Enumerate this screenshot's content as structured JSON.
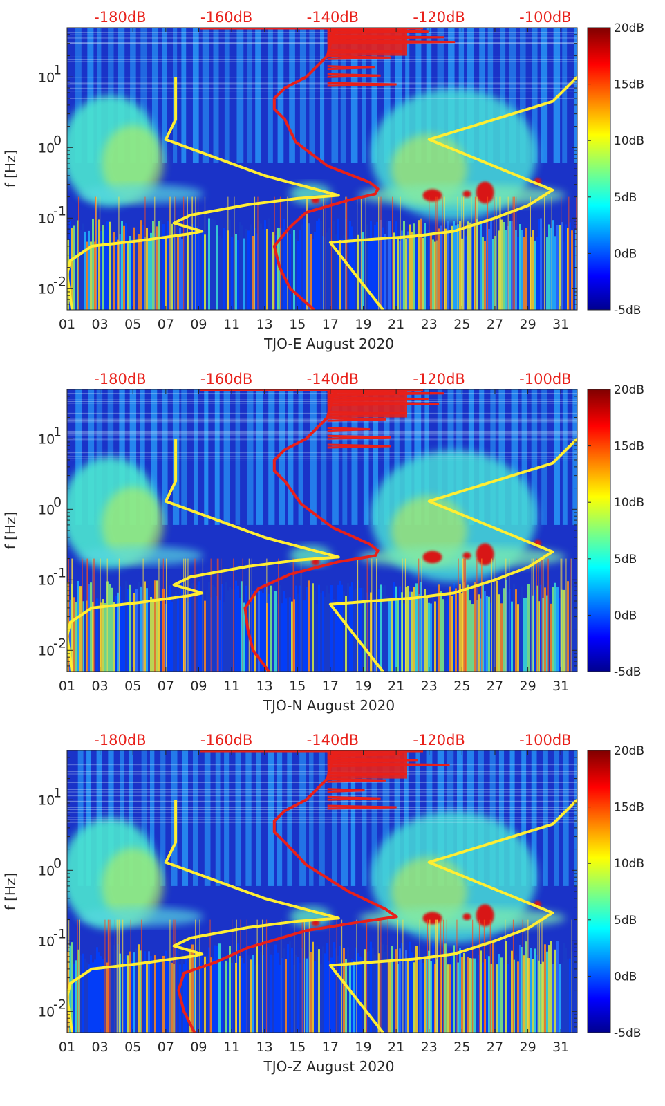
{
  "figure": {
    "ylabel": "f [Hz]",
    "colors": {
      "spectrogram_base": "#1a33c8",
      "limit_curve_red": "#e8201a",
      "noise_curve_yellow": "#ffee33",
      "top_scale_text": "#e8201a"
    }
  },
  "chart_data": [
    {
      "type": "heatmap",
      "title": "",
      "xlabel": "TJO-E August 2020",
      "ylabel": "f [Hz]",
      "x_ticks": [
        "01",
        "03",
        "05",
        "07",
        "09",
        "11",
        "13",
        "15",
        "17",
        "19",
        "21",
        "23",
        "25",
        "27",
        "29",
        "31"
      ],
      "x_range_days": [
        1,
        32
      ],
      "y_scale": "log",
      "y_range_hz": [
        0.005,
        50
      ],
      "y_ticks": [
        {
          "exp": "-2",
          "value": 0.01
        },
        {
          "exp": "-1",
          "value": 0.1
        },
        {
          "exp": "0",
          "value": 1
        },
        {
          "exp": "1",
          "value": 10
        }
      ],
      "top_axis_ticks": [
        "-180dB",
        "-160dB",
        "-140dB",
        "-120dB",
        "-100dB"
      ],
      "top_axis_range_db": [
        -190,
        -94
      ],
      "colorbar": {
        "ticks": [
          "20dB",
          "15dB",
          "10dB",
          "5dB",
          "0dB",
          "-5dB"
        ],
        "range_db": [
          -5,
          20
        ]
      },
      "yellow_curve_day_freq": [
        [
          1.3,
          0.005
        ],
        [
          1,
          0.016
        ],
        [
          1.2,
          0.025
        ],
        [
          2.5,
          0.04
        ],
        [
          5.5,
          0.048
        ],
        [
          8.5,
          0.06
        ],
        [
          9.2,
          0.065
        ],
        [
          7.5,
          0.085
        ],
        [
          8.5,
          0.11
        ],
        [
          12,
          0.155
        ],
        [
          15,
          0.19
        ],
        [
          17.5,
          0.21
        ],
        [
          13,
          0.4
        ],
        [
          7,
          1.3
        ],
        [
          7.6,
          2.5
        ],
        [
          7.6,
          10
        ]
      ],
      "yellow_curve2_day_freq": [
        [
          20.2,
          0.005
        ],
        [
          17,
          0.045
        ],
        [
          19.5,
          0.05
        ],
        [
          22,
          0.055
        ],
        [
          24.5,
          0.065
        ],
        [
          27,
          0.1
        ],
        [
          29,
          0.15
        ],
        [
          30.5,
          0.25
        ],
        [
          23,
          1.3
        ],
        [
          30.5,
          4.5
        ],
        [
          32,
          10
        ]
      ],
      "red_curve_db_freq": [
        [
          -143.5,
          0.005
        ],
        [
          -148,
          0.01
        ],
        [
          -150,
          0.02
        ],
        [
          -151,
          0.04
        ],
        [
          -148,
          0.075
        ],
        [
          -145,
          0.12
        ],
        [
          -137,
          0.18
        ],
        [
          -132,
          0.22
        ],
        [
          -131.5,
          0.26
        ],
        [
          -133,
          0.32
        ],
        [
          -141,
          0.55
        ],
        [
          -147,
          1.2
        ],
        [
          -149,
          2.5
        ],
        [
          -151,
          3.5
        ],
        [
          -151,
          5
        ],
        [
          -149,
          7
        ],
        [
          -145,
          10
        ],
        [
          -141,
          20
        ],
        [
          -140,
          40
        ],
        [
          -139,
          50
        ]
      ],
      "red_spikes_db_freq": [
        [
          -128,
          7.5
        ],
        [
          -131,
          10
        ],
        [
          -132,
          13
        ],
        [
          -129,
          18
        ],
        [
          -127,
          22
        ],
        [
          -117,
          30
        ],
        [
          -119,
          35
        ],
        [
          -122,
          42
        ]
      ]
    },
    {
      "type": "heatmap",
      "title": "",
      "xlabel": "TJO-N August 2020",
      "ylabel": "f [Hz]",
      "x_ticks": [
        "01",
        "03",
        "05",
        "07",
        "09",
        "11",
        "13",
        "15",
        "17",
        "19",
        "21",
        "23",
        "25",
        "27",
        "29",
        "31"
      ],
      "x_range_days": [
        1,
        32
      ],
      "y_scale": "log",
      "y_range_hz": [
        0.005,
        50
      ],
      "y_ticks": [
        {
          "exp": "-2",
          "value": 0.01
        },
        {
          "exp": "-1",
          "value": 0.1
        },
        {
          "exp": "0",
          "value": 1
        },
        {
          "exp": "1",
          "value": 10
        }
      ],
      "top_axis_ticks": [
        "-180dB",
        "-160dB",
        "-140dB",
        "-120dB",
        "-100dB"
      ],
      "top_axis_range_db": [
        -190,
        -94
      ],
      "colorbar": {
        "ticks": [
          "20dB",
          "15dB",
          "10dB",
          "5dB",
          "0dB",
          "-5dB"
        ],
        "range_db": [
          -5,
          20
        ]
      },
      "yellow_curve_day_freq": [
        [
          1.3,
          0.005
        ],
        [
          1,
          0.016
        ],
        [
          1.2,
          0.025
        ],
        [
          2.5,
          0.04
        ],
        [
          5.5,
          0.048
        ],
        [
          8.5,
          0.06
        ],
        [
          9.2,
          0.065
        ],
        [
          7.5,
          0.085
        ],
        [
          8.5,
          0.11
        ],
        [
          12,
          0.155
        ],
        [
          15,
          0.19
        ],
        [
          17.5,
          0.21
        ],
        [
          13,
          0.4
        ],
        [
          7,
          1.3
        ],
        [
          7.6,
          2.5
        ],
        [
          7.6,
          10
        ]
      ],
      "yellow_curve2_day_freq": [
        [
          20.2,
          0.005
        ],
        [
          17,
          0.045
        ],
        [
          19.5,
          0.05
        ],
        [
          22,
          0.055
        ],
        [
          24.5,
          0.065
        ],
        [
          27,
          0.1
        ],
        [
          29,
          0.15
        ],
        [
          30.5,
          0.25
        ],
        [
          23,
          1.3
        ],
        [
          30.5,
          4.5
        ],
        [
          32,
          10
        ]
      ],
      "red_curve_db_freq": [
        [
          -152,
          0.005
        ],
        [
          -155,
          0.01
        ],
        [
          -156,
          0.02
        ],
        [
          -156.5,
          0.04
        ],
        [
          -154,
          0.075
        ],
        [
          -148,
          0.12
        ],
        [
          -139,
          0.18
        ],
        [
          -132,
          0.22
        ],
        [
          -131.5,
          0.26
        ],
        [
          -133,
          0.32
        ],
        [
          -140,
          0.55
        ],
        [
          -146,
          1.2
        ],
        [
          -149,
          2.5
        ],
        [
          -151,
          3.5
        ],
        [
          -151,
          5
        ],
        [
          -149,
          7
        ],
        [
          -145,
          10
        ],
        [
          -141,
          20
        ],
        [
          -140,
          40
        ],
        [
          -139,
          50
        ]
      ],
      "red_spikes_db_freq": [
        [
          -129,
          7.5
        ],
        [
          -129,
          10
        ],
        [
          -133,
          13
        ],
        [
          -130,
          18
        ],
        [
          -126,
          22
        ],
        [
          -120,
          30
        ],
        [
          -122,
          35
        ],
        [
          -119,
          42
        ]
      ]
    },
    {
      "type": "heatmap",
      "title": "",
      "xlabel": "TJO-Z August 2020",
      "ylabel": "f [Hz]",
      "x_ticks": [
        "01",
        "03",
        "05",
        "07",
        "09",
        "11",
        "13",
        "15",
        "17",
        "19",
        "21",
        "23",
        "25",
        "27",
        "29",
        "31"
      ],
      "x_range_days": [
        1,
        32
      ],
      "y_scale": "log",
      "y_range_hz": [
        0.005,
        50
      ],
      "y_ticks": [
        {
          "exp": "-2",
          "value": 0.01
        },
        {
          "exp": "-1",
          "value": 0.1
        },
        {
          "exp": "0",
          "value": 1
        },
        {
          "exp": "1",
          "value": 10
        }
      ],
      "top_axis_ticks": [
        "-180dB",
        "-160dB",
        "-140dB",
        "-120dB",
        "-100dB"
      ],
      "top_axis_range_db": [
        -190,
        -94
      ],
      "colorbar": {
        "ticks": [
          "20dB",
          "15dB",
          "10dB",
          "5dB",
          "0dB",
          "-5dB"
        ],
        "range_db": [
          -5,
          20
        ]
      },
      "yellow_curve_day_freq": [
        [
          1.3,
          0.005
        ],
        [
          1,
          0.016
        ],
        [
          1.2,
          0.025
        ],
        [
          2.5,
          0.04
        ],
        [
          5.5,
          0.048
        ],
        [
          8.5,
          0.06
        ],
        [
          9.2,
          0.065
        ],
        [
          7.5,
          0.085
        ],
        [
          8.5,
          0.11
        ],
        [
          12,
          0.155
        ],
        [
          15,
          0.19
        ],
        [
          17.5,
          0.21
        ],
        [
          13,
          0.4
        ],
        [
          7,
          1.3
        ],
        [
          7.6,
          2.5
        ],
        [
          7.6,
          10
        ]
      ],
      "yellow_curve2_day_freq": [
        [
          20.2,
          0.005
        ],
        [
          17,
          0.045
        ],
        [
          19.5,
          0.05
        ],
        [
          22,
          0.055
        ],
        [
          24.5,
          0.065
        ],
        [
          27,
          0.1
        ],
        [
          29,
          0.15
        ],
        [
          30.5,
          0.25
        ],
        [
          23,
          1.3
        ],
        [
          30.5,
          4.5
        ],
        [
          32,
          10
        ]
      ],
      "red_curve_db_freq": [
        [
          -166,
          0.005
        ],
        [
          -168,
          0.01
        ],
        [
          -169,
          0.02
        ],
        [
          -168,
          0.035
        ],
        [
          -162,
          0.05
        ],
        [
          -156,
          0.08
        ],
        [
          -145,
          0.14
        ],
        [
          -134,
          0.19
        ],
        [
          -128,
          0.22
        ],
        [
          -130,
          0.28
        ],
        [
          -137,
          0.5
        ],
        [
          -145,
          1.2
        ],
        [
          -149,
          2.5
        ],
        [
          -151,
          3.5
        ],
        [
          -151,
          5
        ],
        [
          -149,
          7
        ],
        [
          -145,
          10
        ],
        [
          -141,
          20
        ],
        [
          -140,
          40
        ],
        [
          -139,
          50
        ]
      ],
      "red_spikes_db_freq": [
        [
          -128,
          7.5
        ],
        [
          -131,
          10
        ],
        [
          -134,
          13
        ],
        [
          -130,
          18
        ],
        [
          -126,
          22
        ],
        [
          -118,
          30
        ],
        [
          -124,
          35
        ],
        [
          -127,
          42
        ]
      ]
    }
  ]
}
